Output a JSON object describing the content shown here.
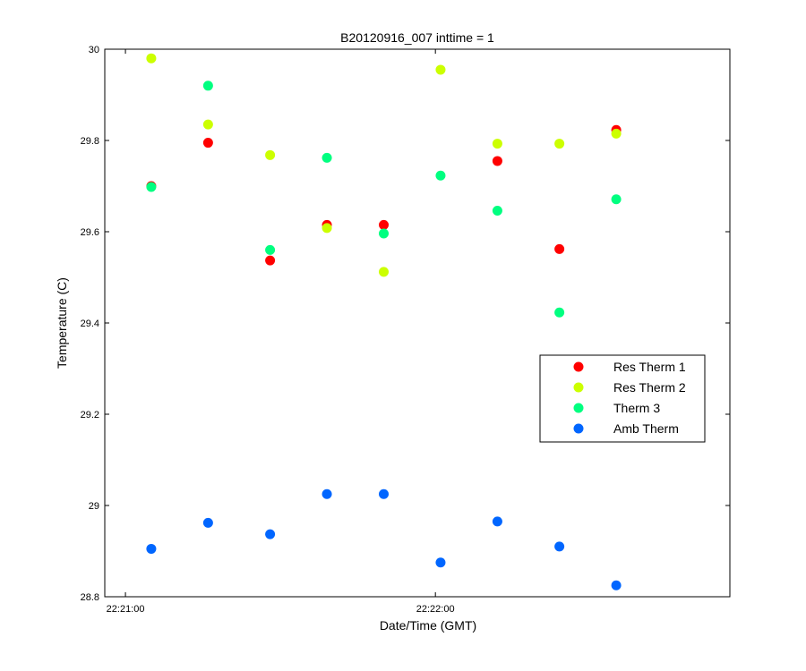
{
  "chart_data": {
    "type": "scatter",
    "title": "B20120916_007 inttime = 1",
    "xlabel": "Date/Time (GMT)",
    "ylabel": "Temperature (C)",
    "xlim": [
      "22:20:56",
      "22:22:57"
    ],
    "ylim": [
      28.8,
      30
    ],
    "x_ticks": [
      "22:21:00",
      "22:22:00"
    ],
    "y_ticks": [
      "28.8",
      "29",
      "29.2",
      "29.4",
      "29.6",
      "29.8",
      "30"
    ],
    "grid": false,
    "legend_position": "right",
    "x": [
      "22:21:05",
      "22:21:16",
      "22:21:28",
      "22:21:39",
      "22:21:50",
      "22:22:01",
      "22:22:12",
      "22:22:24",
      "22:22:35"
    ],
    "series": [
      {
        "name": "Res Therm 1",
        "color": "#ff0000",
        "values": [
          29.7,
          29.795,
          29.537,
          29.615,
          29.615,
          null,
          29.755,
          29.562,
          29.823
        ]
      },
      {
        "name": "Res Therm 2",
        "color": "#ccff00",
        "values": [
          29.98,
          29.835,
          29.768,
          29.608,
          29.512,
          29.955,
          29.793,
          29.793,
          29.815
        ]
      },
      {
        "name": "Therm 3",
        "color": "#00ff80",
        "values": [
          29.698,
          29.92,
          29.56,
          29.762,
          29.596,
          29.723,
          29.646,
          29.423,
          29.671
        ]
      },
      {
        "name": "Amb Therm",
        "color": "#0066ff",
        "values": [
          28.905,
          28.962,
          28.937,
          29.025,
          29.025,
          28.875,
          28.965,
          28.91,
          28.825
        ]
      }
    ]
  }
}
